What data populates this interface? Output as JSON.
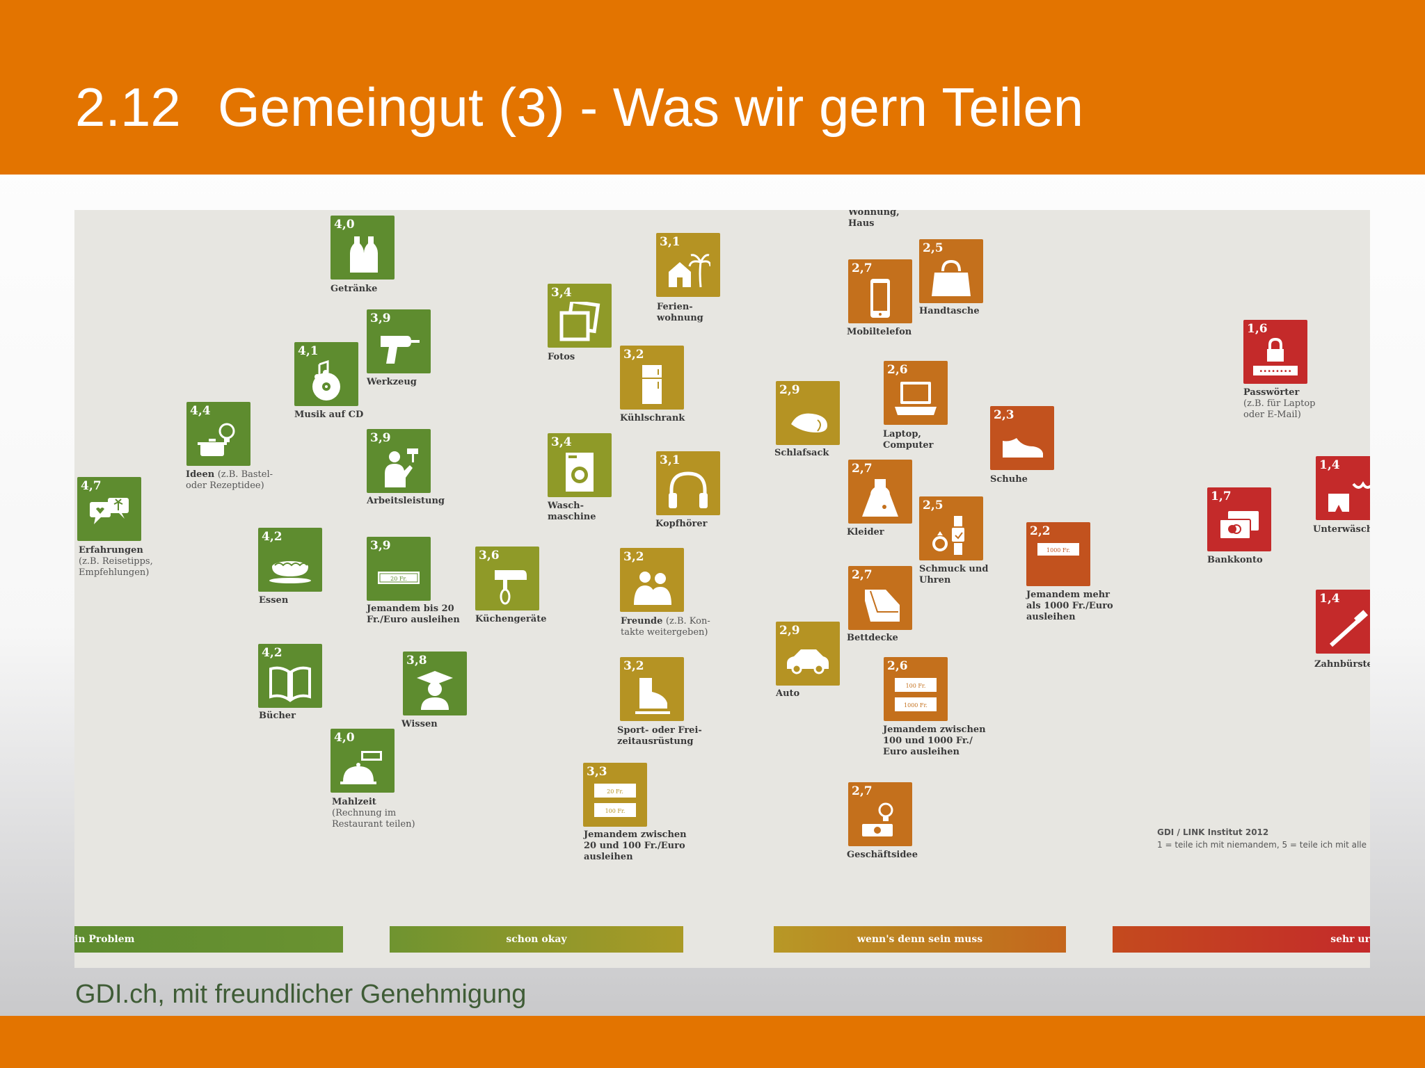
{
  "header": {
    "number": "2.12",
    "title": "Gemeingut (3) - Was wir gern Teilen"
  },
  "footer": {
    "credit": "GDI.ch, mit freundlicher Genehmigung"
  },
  "source": {
    "institute": "GDI / LINK Institut 2012",
    "scale": "1 = teile ich mit niemandem, 5 = teile ich mit alle"
  },
  "colors": {
    "orange": "#e37400",
    "green": "#5e8c2f",
    "olive": "#8f9a28",
    "gold": "#b59323",
    "amber": "#c4701c",
    "rust": "#c2521e",
    "red": "#c42a2a"
  },
  "bands": [
    {
      "label": "in Problem"
    },
    {
      "label": "schon okay"
    },
    {
      "label": "wenn's denn sein muss"
    },
    {
      "label": "sehr ur"
    }
  ],
  "items": [
    {
      "value": "4,7",
      "label": "Erfahrungen",
      "sub": "(z.B. Reisetipps,\nEmpfehlungen)",
      "icon": "speech-bubbles-icon"
    },
    {
      "value": "4,4",
      "label": "Ideen",
      "sub": "(z.B. Bastel-\noder Rezeptidee)",
      "icon": "pot-lightbulb-icon"
    },
    {
      "value": "4,1",
      "label": "Musik auf CD",
      "icon": "music-cd-icon"
    },
    {
      "value": "4,0",
      "label": "Getränke",
      "icon": "bottles-icon"
    },
    {
      "value": "3,9",
      "label": "Werkzeug",
      "icon": "drill-icon"
    },
    {
      "value": "3,9",
      "label": "Arbeitsleistung",
      "icon": "worker-roller-icon"
    },
    {
      "value": "4,2",
      "label": "Essen",
      "icon": "pie-dish-icon"
    },
    {
      "value": "3,9",
      "label": "Jemandem bis 20\nFr./Euro ausleihen",
      "icon": "banknote-icon",
      "note": "20 Fr."
    },
    {
      "value": "4,2",
      "label": "Bücher",
      "icon": "open-book-icon"
    },
    {
      "value": "3,8",
      "label": "Wissen",
      "icon": "graduate-icon"
    },
    {
      "value": "4,0",
      "label": "Mahlzeit",
      "sub": "(Rechnung im\nRestaurant teilen)",
      "icon": "cloche-icon"
    },
    {
      "value": "3,6",
      "label": "Küchengeräte",
      "icon": "mixer-icon"
    },
    {
      "value": "3,4",
      "label": "Fotos",
      "icon": "photos-icon"
    },
    {
      "value": "3,4",
      "label": "Wasch-\nmaschine",
      "icon": "washing-machine-icon"
    },
    {
      "value": "3,3",
      "label": "Jemandem zwischen\n20 und 100 Fr./Euro\nausleihen",
      "icon": "banknotes-icon",
      "note": "20 Fr.",
      "note2": "100 Fr."
    },
    {
      "value": "3,1",
      "label": "Ferien-\nwohnung",
      "icon": "house-palm-icon"
    },
    {
      "value": "3,2",
      "label": "Kühlschrank",
      "icon": "fridge-icon"
    },
    {
      "value": "3,1",
      "label": "Kopfhörer",
      "icon": "headphones-icon"
    },
    {
      "value": "3,2",
      "label": "Freunde",
      "sub": "(z.B. Kon-\ntakte weitergeben)",
      "icon": "friends-icon"
    },
    {
      "value": "3,2",
      "label": "Sport- oder Frei-\nzeitausrüstung",
      "icon": "skate-icon"
    },
    {
      "value": "2,9",
      "label": "Schlafsack",
      "icon": "sleeping-bag-icon"
    },
    {
      "value": "2,9",
      "label": "Auto",
      "icon": "car-icon"
    },
    {
      "value": "Wohnung,\nHaus",
      "label": ""
    },
    {
      "value": "2,7",
      "label": "Mobiltelefon",
      "icon": "mobile-phone-icon"
    },
    {
      "value": "2,5",
      "label": "Handtasche",
      "icon": "handbag-icon"
    },
    {
      "value": "2,6",
      "label": "Laptop,\nComputer",
      "icon": "laptop-icon"
    },
    {
      "value": "2,7",
      "label": "Kleider",
      "icon": "dress-icon"
    },
    {
      "value": "2,5",
      "label": "Schmuck und\nUhren",
      "icon": "ring-watch-icon"
    },
    {
      "value": "2,7",
      "label": "Bettdecke",
      "icon": "blanket-icon"
    },
    {
      "value": "2,6",
      "label": "Jemandem zwischen\n100 und 1000 Fr./\nEuro ausleihen",
      "icon": "banknotes-icon",
      "note": "100 Fr.",
      "note2": "1000 Fr."
    },
    {
      "value": "2,7",
      "label": "Geschäftsidee",
      "icon": "money-lightbulb-icon"
    },
    {
      "value": "2,3",
      "label": "Schuhe",
      "icon": "shoe-icon"
    },
    {
      "value": "2,2",
      "label": "Jemandem mehr\nals 1000 Fr./Euro\nausleihen",
      "icon": "banknote-icon",
      "note": "1000 Fr."
    },
    {
      "value": "1,6",
      "label": "Passwörter",
      "sub": "(z.B. für Laptop\noder E-Mail)",
      "icon": "lock-password-icon"
    },
    {
      "value": "1,7",
      "label": "Bankkonto",
      "icon": "cards-icon"
    },
    {
      "value": "1,4",
      "label": "Unterwäsche",
      "icon": "underwear-icon"
    },
    {
      "value": "1,4",
      "label": "Zahnbürste",
      "icon": "toothbrush-icon"
    }
  ]
}
